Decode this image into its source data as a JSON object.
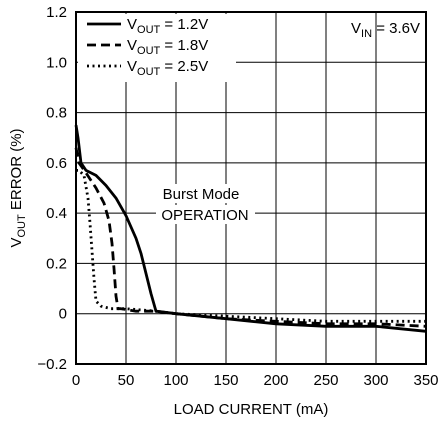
{
  "chart_data": {
    "type": "line",
    "xlabel": "LOAD CURRENT (mA)",
    "ylabel": {
      "main": "V",
      "sub": "OUT",
      "rest": " ERROR (%)"
    },
    "xlim": [
      0,
      350
    ],
    "ylim": [
      -0.2,
      1.2
    ],
    "xticks": [
      0,
      50,
      100,
      150,
      200,
      250,
      300,
      350
    ],
    "yticks": [
      -0.2,
      0,
      0.2,
      0.4,
      0.6,
      0.8,
      1.0,
      1.2
    ],
    "ytick_labels": [
      "−0.2",
      "0",
      "0.2",
      "0.4",
      "0.6",
      "0.8",
      "1.0",
      "1.2"
    ],
    "xtick_labels": [
      "0",
      "50",
      "100",
      "150",
      "200",
      "250",
      "300",
      "350"
    ],
    "grid": true,
    "legend_position": "top-left",
    "series": [
      {
        "label_main": "V",
        "label_sub": "OUT",
        "label_rest": " = 1.2V",
        "dash": "solid",
        "x": [
          0,
          2,
          5,
          10,
          20,
          30,
          40,
          50,
          60,
          65,
          70,
          75,
          80,
          100,
          150,
          200,
          250,
          300,
          350
        ],
        "y": [
          0.75,
          0.7,
          0.6,
          0.57,
          0.55,
          0.51,
          0.46,
          0.39,
          0.3,
          0.24,
          0.16,
          0.08,
          0.01,
          0.0,
          -0.02,
          -0.04,
          -0.05,
          -0.05,
          -0.07
        ]
      },
      {
        "label_main": "V",
        "label_sub": "OUT",
        "label_rest": " = 1.8V",
        "dash": "dashed",
        "x": [
          0,
          3,
          10,
          20,
          28,
          33,
          36,
          38,
          40,
          42,
          45,
          60,
          80,
          100,
          150,
          200,
          250,
          300,
          350
        ],
        "y": [
          0.66,
          0.6,
          0.56,
          0.5,
          0.44,
          0.37,
          0.28,
          0.18,
          0.07,
          0.02,
          0.02,
          0.01,
          0.01,
          0.0,
          -0.02,
          -0.03,
          -0.04,
          -0.04,
          -0.05
        ]
      },
      {
        "label_main": "V",
        "label_sub": "OUT",
        "label_rest": " = 2.5V",
        "dash": "dotted",
        "x": [
          0,
          3,
          8,
          12,
          14,
          16,
          18,
          20,
          25,
          35,
          50,
          80,
          100,
          150,
          200,
          250,
          300,
          350
        ],
        "y": [
          0.57,
          0.57,
          0.55,
          0.46,
          0.36,
          0.25,
          0.14,
          0.05,
          0.03,
          0.02,
          0.02,
          0.01,
          0.0,
          -0.01,
          -0.02,
          -0.03,
          -0.03,
          -0.03
        ]
      }
    ],
    "annotations": [
      {
        "id": "vin",
        "main": "V",
        "sub": "IN",
        "rest": " = 3.6V"
      },
      {
        "id": "burst1",
        "text": "Burst Mode"
      },
      {
        "id": "burst2",
        "text": "OPERATION"
      }
    ],
    "colors": {
      "line": "#000000",
      "grid": "#000000",
      "background": "#ffffff"
    }
  }
}
